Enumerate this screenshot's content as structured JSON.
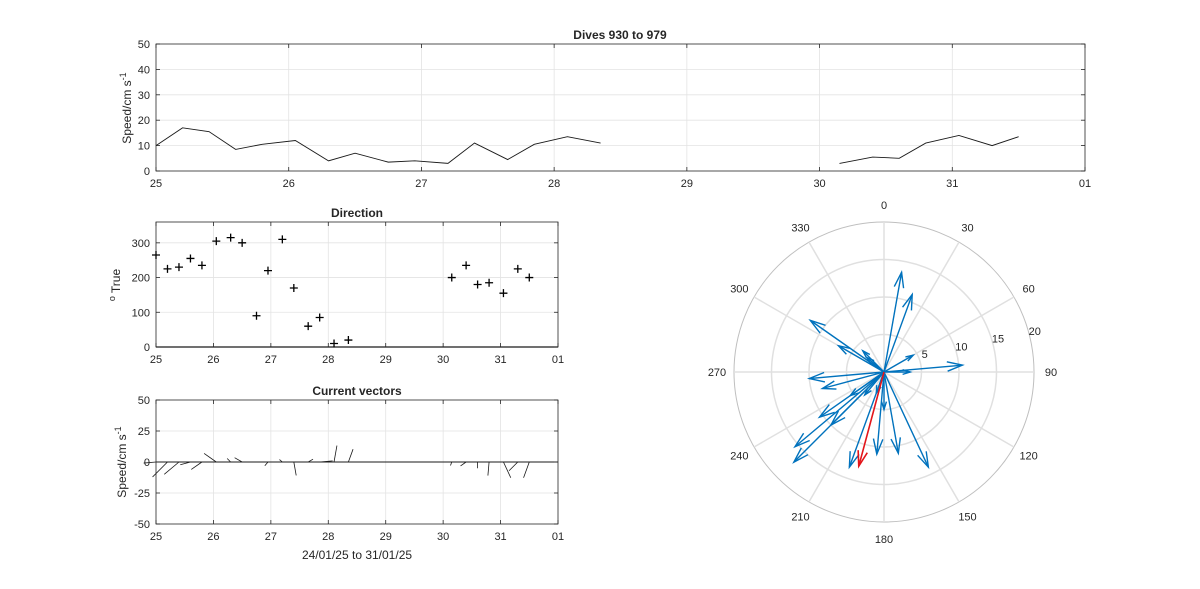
{
  "figure": {
    "speed_title": "Dives 930 to 979",
    "direction_title": "Direction",
    "vectors_title": "Current vectors",
    "speed_ylabel": "Speed/cm s",
    "speed_ylabel_sup": "-1",
    "direction_ylabel_sup": "o",
    "direction_ylabel": "True",
    "vectors_ylabel": "Speed/cm s",
    "vectors_ylabel_sup": "-1",
    "vectors_xlabel": "24/01/25 to 31/01/25",
    "date_ticks": [
      "25",
      "26",
      "27",
      "28",
      "29",
      "30",
      "31",
      "01"
    ]
  },
  "chart_data": [
    {
      "type": "line",
      "title": "Dives 930 to 979",
      "ylabel": "Speed/cm s-1",
      "xlim": [
        25,
        32
      ],
      "ylim": [
        0,
        50
      ],
      "yticks": [
        0,
        10,
        20,
        30,
        40,
        50
      ],
      "grid": true,
      "segments": [
        {
          "x": [
            25.0,
            25.2,
            25.4,
            25.6,
            25.8,
            26.05,
            26.3,
            26.5,
            26.75,
            26.95,
            27.2,
            27.4,
            27.65,
            27.85,
            28.1,
            28.35
          ],
          "y": [
            10.0,
            17.0,
            15.5,
            8.5,
            10.5,
            12.0,
            4.0,
            7.0,
            3.5,
            4.0,
            3.0,
            11.0,
            4.5,
            10.5,
            13.5,
            11.0
          ]
        },
        {
          "x": [
            30.15,
            30.4,
            30.6,
            30.8,
            31.05,
            31.3,
            31.5
          ],
          "y": [
            3.0,
            5.5,
            5.0,
            11.0,
            14.0,
            10.0,
            13.5
          ]
        }
      ]
    },
    {
      "type": "scatter",
      "title": "Direction",
      "ylabel": "o True",
      "xlim": [
        25,
        32
      ],
      "ylim": [
        0,
        360
      ],
      "yticks": [
        0,
        100,
        200,
        300
      ],
      "grid": true,
      "marker": "+",
      "x": [
        25.0,
        25.2,
        25.4,
        25.6,
        25.8,
        26.05,
        26.3,
        26.5,
        26.75,
        26.95,
        27.2,
        27.4,
        27.65,
        27.85,
        28.1,
        28.35,
        30.15,
        30.4,
        30.6,
        30.8,
        31.05,
        31.3,
        31.5
      ],
      "y": [
        265,
        225,
        230,
        255,
        235,
        305,
        315,
        300,
        90,
        220,
        310,
        170,
        60,
        85,
        10,
        20,
        200,
        235,
        180,
        185,
        155,
        225,
        200
      ]
    },
    {
      "type": "quiver",
      "title": "Current vectors",
      "ylabel": "Speed/cm s-1",
      "xlabel": "24/01/25 to 31/01/25",
      "xlim": [
        25,
        32
      ],
      "ylim": [
        -50,
        50
      ],
      "yticks": [
        -50,
        -25,
        0,
        25,
        50
      ],
      "grid": true,
      "x": [
        25.0,
        25.2,
        25.4,
        25.6,
        25.8,
        26.05,
        26.3,
        26.5,
        26.75,
        26.95,
        27.2,
        27.4,
        27.65,
        27.85,
        28.1,
        28.35,
        30.15,
        30.4,
        30.6,
        30.8,
        31.05,
        31.3,
        31.5
      ],
      "speed": [
        10.0,
        17.0,
        15.5,
        8.5,
        10.5,
        12.0,
        4.0,
        7.0,
        3.5,
        4.0,
        3.0,
        11.0,
        4.5,
        10.5,
        13.5,
        11.0,
        3.0,
        5.5,
        5.0,
        11.0,
        14.0,
        10.0,
        13.5
      ],
      "direction": [
        265,
        225,
        230,
        255,
        235,
        305,
        315,
        300,
        90,
        220,
        310,
        170,
        60,
        85,
        10,
        20,
        200,
        235,
        180,
        185,
        155,
        225,
        200
      ]
    },
    {
      "type": "compass",
      "rlim": [
        0,
        20
      ],
      "rticks": [
        5,
        10,
        15,
        20
      ],
      "angle_ticks": [
        0,
        30,
        60,
        90,
        120,
        150,
        180,
        210,
        240,
        270,
        300,
        330
      ],
      "directions": [
        265,
        225,
        230,
        255,
        235,
        305,
        315,
        300,
        90,
        220,
        310,
        170,
        60,
        85,
        10,
        20,
        200,
        235,
        180,
        185,
        155,
        225,
        200
      ],
      "speeds": [
        10.0,
        17.0,
        15.5,
        8.5,
        10.5,
        12.0,
        4.0,
        7.0,
        3.5,
        4.0,
        3.0,
        11.0,
        4.5,
        10.5,
        13.5,
        11.0,
        3.0,
        5.5,
        5.0,
        11.0,
        14.0,
        10.0,
        13.5
      ],
      "mean_vector": {
        "direction": 195,
        "speed": 13.0
      },
      "colors": {
        "vectors": "#0072bd",
        "mean": "#e3151a"
      }
    }
  ]
}
